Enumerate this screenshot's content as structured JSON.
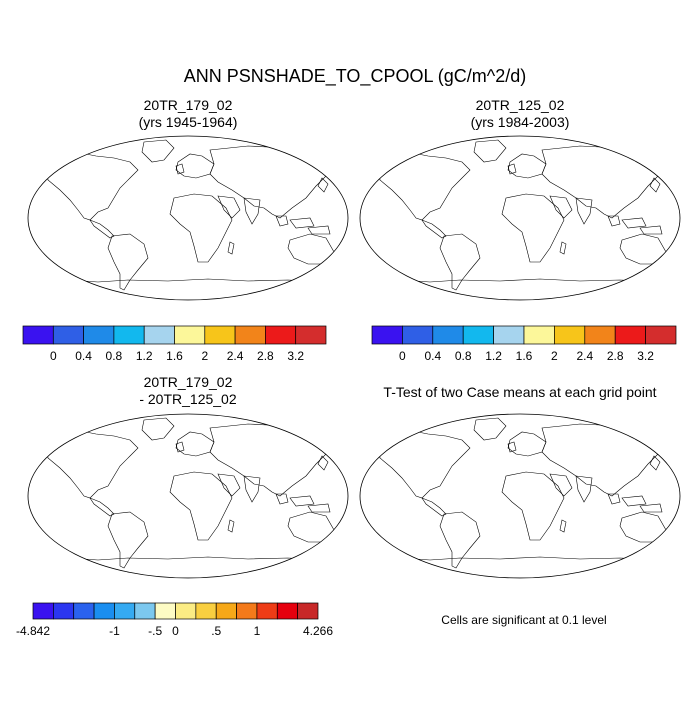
{
  "title": "ANN PSNSHADE_TO_CPOOL (gC/m^2/d)",
  "panels": [
    {
      "id": "case1",
      "title_line1": "20TR_179_02",
      "title_line2": "(yrs 1945-1964)"
    },
    {
      "id": "case2",
      "title_line1": "20TR_125_02",
      "title_line2": "(yrs 1984-2003)"
    },
    {
      "id": "diff",
      "title_line1": "20TR_179_02",
      "title_line2": "- 20TR_125_02"
    },
    {
      "id": "ttest",
      "title_line1": "T-Test of two Case means at each grid point",
      "title_line2": ""
    }
  ],
  "colorbars": {
    "absolute": {
      "colors": [
        "#3a12f0",
        "#2f5fe6",
        "#1f8ae8",
        "#12b8ee",
        "#a6d4ee",
        "#fcf79a",
        "#f7c51a",
        "#f2841a",
        "#ec1a1a",
        "#d42d2d"
      ],
      "labels": [
        "0",
        "0.4",
        "0.8",
        "1.2",
        "1.6",
        "2",
        "2.4",
        "2.8",
        "3.2"
      ]
    },
    "difference": {
      "colors": [
        "#3a12f0",
        "#2b36f0",
        "#2a62ee",
        "#1a8ef0",
        "#35aaf2",
        "#7cc8ef",
        "#fdfbc4",
        "#fbec84",
        "#f9cf40",
        "#f6a818",
        "#f47a1a",
        "#ee3c16",
        "#e6000e",
        "#c82828"
      ],
      "labels": [
        "-4.842",
        "-1",
        "-.5",
        "0",
        ".5",
        "1",
        "4.266"
      ]
    }
  },
  "ttest_note": "Cells are significant at 0.1 level",
  "palette": {
    "ocean": "#ffffff",
    "land_low": "#2f5fe6",
    "tropical_high": "#e02424",
    "significant": "#ff0000",
    "diff_neutral": "#fcf5a8"
  }
}
